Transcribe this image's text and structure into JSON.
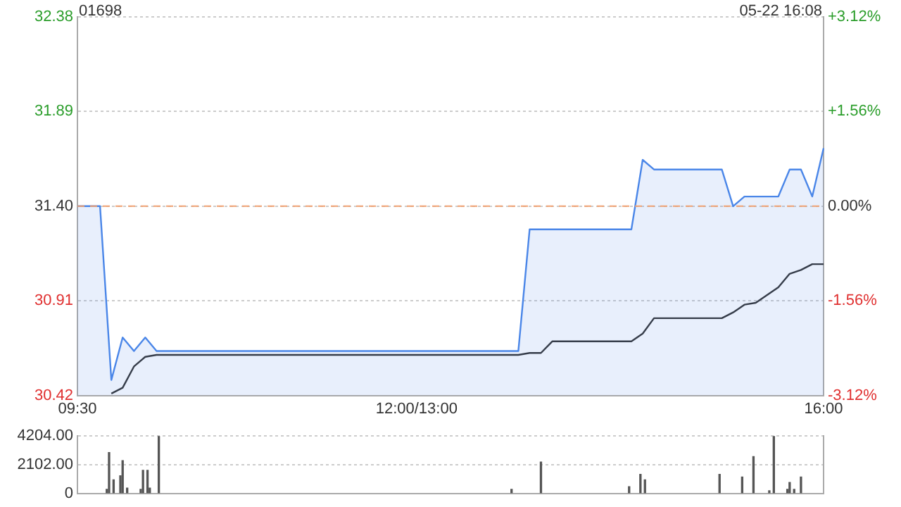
{
  "chart_data": [
    {
      "type": "line",
      "title": "01698",
      "annotations": [
        "05-22 16:08"
      ],
      "categories": [
        "09:30",
        null,
        null,
        null,
        null,
        null,
        null,
        null,
        null,
        null,
        null,
        null,
        null,
        null,
        null,
        null,
        null,
        null,
        null,
        null,
        null,
        null,
        null,
        null,
        null,
        null,
        null,
        null,
        null,
        null,
        "12:00/13:00",
        null,
        null,
        null,
        null,
        null,
        null,
        null,
        null,
        null,
        null,
        null,
        null,
        null,
        null,
        null,
        null,
        null,
        null,
        null,
        null,
        null,
        null,
        null,
        null,
        null,
        null,
        null,
        null,
        null,
        null,
        null,
        null,
        null,
        null,
        null,
        "16:00"
      ],
      "ylim": [
        30.42,
        32.38
      ],
      "yticks": [
        30.42,
        30.91,
        {
          "value": 31.4,
          "label": "31.40"
        },
        31.89,
        32.38
      ],
      "y2lim": [
        -3.12,
        3.12
      ],
      "y2ticks": [
        {
          "value": -3.12,
          "label": "-3.12%"
        },
        {
          "value": -1.56,
          "label": "-1.56%"
        },
        {
          "value": 0,
          "label": "0.00%"
        },
        {
          "value": 1.56,
          "label": "+1.56%"
        },
        {
          "value": 3.12,
          "label": "+3.12%"
        }
      ],
      "grid": "y",
      "legend": false,
      "ref_lines": [
        {
          "axis": "y",
          "value": 31.4,
          "color": "#f0a070",
          "line_style": "dashed"
        }
      ],
      "series": [
        {
          "type": "area",
          "color": "#4a86e8",
          "values": [
            31.4,
            31.4,
            31.4,
            30.5,
            30.72,
            30.65,
            30.72,
            30.65,
            30.65,
            30.65,
            30.65,
            30.65,
            30.65,
            30.65,
            30.65,
            30.65,
            30.65,
            30.65,
            30.65,
            30.65,
            30.65,
            30.65,
            30.65,
            30.65,
            30.65,
            30.65,
            30.65,
            30.65,
            30.65,
            30.65,
            30.65,
            30.65,
            30.65,
            30.65,
            30.65,
            30.65,
            30.65,
            30.65,
            30.65,
            30.65,
            31.28,
            31.28,
            31.28,
            31.28,
            31.28,
            31.28,
            31.28,
            31.28,
            31.28,
            31.28,
            31.64,
            31.59,
            31.59,
            31.59,
            31.59,
            31.59,
            31.59,
            31.59,
            31.4,
            31.45,
            31.45,
            31.45,
            31.45,
            31.59,
            31.59,
            31.45,
            31.7
          ]
        },
        {
          "type": "line",
          "color": "#333333",
          "values": [
            null,
            null,
            null,
            30.43,
            30.46,
            30.57,
            30.62,
            30.63,
            30.63,
            30.63,
            30.63,
            30.63,
            30.63,
            30.63,
            30.63,
            30.63,
            30.63,
            30.63,
            30.63,
            30.63,
            30.63,
            30.63,
            30.63,
            30.63,
            30.63,
            30.63,
            30.63,
            30.63,
            30.63,
            30.63,
            30.63,
            30.63,
            30.63,
            30.63,
            30.63,
            30.63,
            30.63,
            30.63,
            30.63,
            30.63,
            30.64,
            30.64,
            30.7,
            30.7,
            30.7,
            30.7,
            30.7,
            30.7,
            30.7,
            30.7,
            30.74,
            30.82,
            30.82,
            30.82,
            30.82,
            30.82,
            30.82,
            30.82,
            30.85,
            30.89,
            30.9,
            30.94,
            30.98,
            31.05,
            31.07,
            31.1,
            31.1
          ]
        }
      ]
    },
    {
      "type": "bar",
      "color": "#555555",
      "tick_labels": "y",
      "grid": "y",
      "legend": false,
      "categories": [
        null,
        null,
        null,
        null,
        null,
        null,
        null,
        null,
        null,
        null,
        null,
        null,
        null,
        null,
        null,
        null,
        null,
        null,
        null,
        null,
        null,
        null,
        null,
        null,
        null,
        null,
        null,
        null,
        null,
        null,
        null,
        null,
        null,
        null,
        null,
        null,
        null,
        null,
        null,
        null,
        null,
        null,
        null,
        null,
        null,
        null,
        null,
        null,
        null,
        null,
        null,
        null,
        null,
        null,
        null,
        null,
        null,
        null,
        null,
        null,
        null,
        null,
        null,
        null,
        null,
        null,
        null,
        null,
        null,
        null,
        null,
        null,
        null,
        null,
        null,
        null,
        null,
        null,
        null,
        null,
        null,
        null,
        null,
        null,
        null,
        null,
        null,
        null,
        null,
        null,
        null,
        null,
        null,
        null,
        null,
        null,
        null,
        null,
        null,
        null,
        null,
        null,
        null,
        null,
        null,
        null,
        null,
        null,
        null,
        null,
        null,
        null,
        null,
        null,
        null,
        null,
        null,
        null,
        null,
        null,
        null,
        null,
        null,
        null,
        null,
        null,
        null,
        null,
        null,
        null,
        null,
        null,
        null,
        null,
        null,
        null,
        null,
        null,
        null,
        null,
        null,
        null,
        null,
        null,
        null,
        null,
        null,
        null,
        null,
        null,
        null,
        null,
        null,
        null,
        null,
        null,
        null,
        null,
        null,
        null,
        null,
        null,
        null,
        null,
        null,
        null,
        null,
        null,
        null,
        null,
        null,
        null,
        null,
        null,
        null,
        null,
        null,
        null,
        null,
        null,
        null,
        null,
        null,
        null,
        null,
        null,
        null,
        null,
        null,
        null,
        null,
        null,
        null,
        null,
        null,
        null,
        null,
        null,
        null,
        null,
        null,
        null,
        null,
        null,
        null,
        null,
        null,
        null,
        null,
        null,
        null,
        null,
        null,
        null,
        null,
        null,
        null,
        null,
        null,
        null,
        null,
        null,
        null,
        null,
        null,
        null,
        null,
        null,
        null,
        null,
        null,
        null,
        null,
        null,
        null,
        null,
        null,
        null,
        null,
        null,
        null,
        null,
        null,
        null,
        null,
        null,
        null,
        null,
        null,
        null,
        null,
        null,
        null,
        null,
        null,
        null,
        null,
        null,
        null,
        null,
        null,
        null,
        null,
        null,
        null,
        null,
        null,
        null,
        null,
        null,
        null,
        null,
        null,
        null,
        null,
        null,
        null,
        null,
        null,
        null,
        null,
        null,
        null,
        null,
        null,
        null,
        null,
        null,
        null,
        null,
        null,
        null,
        null,
        null,
        null,
        null,
        null,
        null,
        null,
        null,
        null,
        null,
        null,
        null,
        null,
        null,
        null,
        null,
        null,
        null,
        null,
        null,
        null,
        null,
        null,
        null,
        null,
        null,
        null,
        null,
        null,
        null,
        null,
        null,
        null,
        null,
        null,
        null,
        null,
        null,
        null
      ],
      "ylim": [
        0,
        4204
      ],
      "yticks": [
        0,
        {
          "value": 2102,
          "label": "2102.00"
        },
        {
          "value": 4204,
          "label": "4204.00"
        }
      ],
      "values": [
        null,
        null,
        null,
        null,
        null,
        null,
        null,
        null,
        null,
        null,
        null,
        null,
        null,
        300,
        3000,
        null,
        1000,
        null,
        null,
        1300,
        2400,
        null,
        400,
        null,
        null,
        null,
        null,
        null,
        300,
        1700,
        null,
        1700,
        400,
        null,
        null,
        null,
        4200,
        null,
        null,
        null,
        null,
        null,
        null,
        null,
        null,
        null,
        null,
        null,
        null,
        null,
        null,
        null,
        null,
        null,
        null,
        null,
        null,
        null,
        null,
        null,
        null,
        null,
        null,
        null,
        null,
        null,
        null,
        null,
        null,
        null,
        null,
        null,
        null,
        null,
        null,
        null,
        null,
        null,
        null,
        null,
        null,
        null,
        null,
        null,
        null,
        null,
        null,
        null,
        null,
        null,
        null,
        null,
        null,
        null,
        null,
        null,
        null,
        null,
        null,
        null,
        null,
        null,
        null,
        null,
        null,
        null,
        null,
        null,
        null,
        null,
        null,
        null,
        null,
        null,
        null,
        null,
        null,
        null,
        null,
        null,
        null,
        null,
        null,
        null,
        null,
        null,
        null,
        null,
        null,
        null,
        null,
        null,
        null,
        null,
        null,
        null,
        null,
        null,
        null,
        null,
        null,
        null,
        null,
        null,
        null,
        null,
        null,
        null,
        null,
        null,
        null,
        null,
        null,
        null,
        null,
        null,
        null,
        null,
        null,
        null,
        null,
        null,
        null,
        null,
        null,
        null,
        null,
        null,
        null,
        null,
        null,
        null,
        null,
        null,
        null,
        null,
        null,
        null,
        null,
        null,
        null,
        null,
        null,
        null,
        null,
        null,
        null,
        null,
        null,
        null,
        null,
        null,
        300,
        null,
        null,
        null,
        null,
        null,
        null,
        null,
        null,
        null,
        null,
        null,
        null,
        2300,
        null,
        null,
        null,
        null,
        null,
        null,
        null,
        null,
        null,
        null,
        null,
        null,
        null,
        null,
        null,
        null,
        null,
        null,
        null,
        null,
        null,
        null,
        null,
        null,
        null,
        null,
        null,
        null,
        null,
        null,
        null,
        null,
        null,
        null,
        null,
        null,
        null,
        null,
        500,
        null,
        null,
        null,
        null,
        1400,
        null,
        1000,
        null,
        null,
        null,
        null,
        null,
        null,
        null,
        null,
        null,
        null,
        null,
        null,
        null,
        null,
        null,
        null,
        null,
        null,
        null,
        null,
        null,
        null,
        null,
        null,
        null,
        null,
        null,
        null,
        null,
        null,
        null,
        null,
        1400,
        null,
        null,
        null,
        null,
        null,
        null,
        null,
        null,
        null,
        1200,
        null,
        null,
        null,
        null,
        2700,
        null,
        null,
        null,
        null,
        null,
        null,
        200,
        null,
        4200,
        null,
        null,
        null,
        null,
        null,
        300,
        800,
        null,
        300,
        null,
        null,
        1200,
        null,
        null,
        null,
        null,
        null,
        null,
        null,
        null,
        null,
        null
      ]
    }
  ]
}
